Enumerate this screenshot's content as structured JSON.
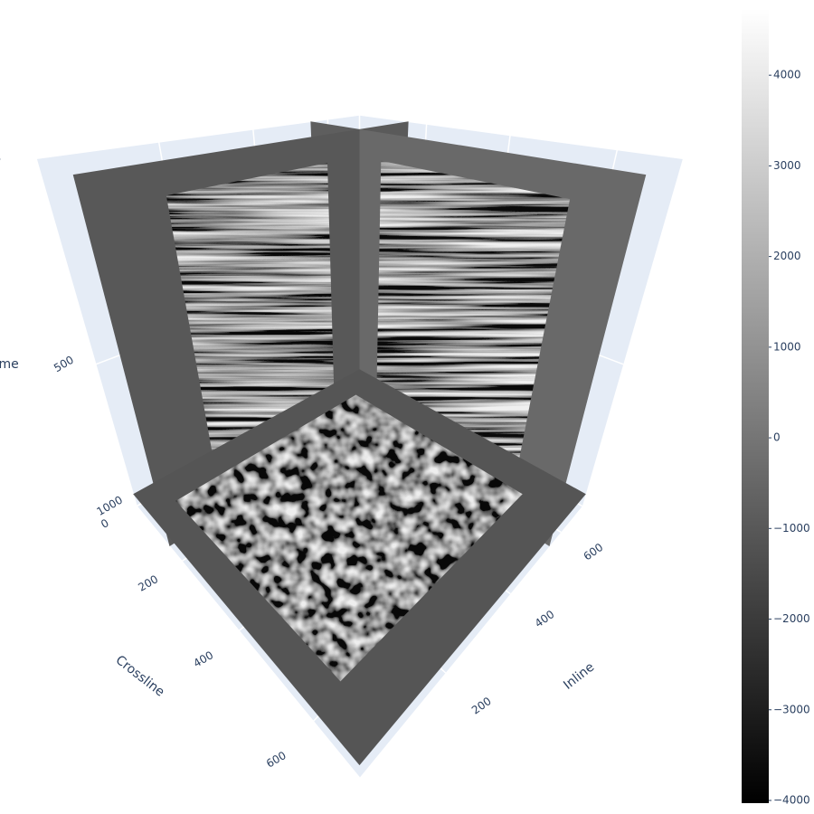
{
  "chart_data": {
    "type": "surface3d",
    "scene": {
      "xaxis": {
        "title": "Inline",
        "range": [
          0,
          700
        ],
        "ticks": [
          0,
          200,
          400,
          600
        ]
      },
      "yaxis": {
        "title": "Crossline",
        "range": [
          0,
          700
        ],
        "ticks": [
          0,
          200,
          400,
          600
        ]
      },
      "zaxis": {
        "title": "Time",
        "range": [
          0,
          1000
        ],
        "ticks": [
          0,
          500,
          1000
        ],
        "reversed": true
      },
      "bgcolor": "#e5ecf6",
      "gridcolor": "#ffffff"
    },
    "slices": {
      "inline": 550,
      "crossline": 150,
      "time": 950
    },
    "colorbar": {
      "range": [
        -4030,
        4730
      ],
      "colors": [
        "#000000",
        "#ffffff"
      ],
      "ticks": [
        {
          "value": -4000,
          "label": "−4000"
        },
        {
          "value": -3000,
          "label": "−3000"
        },
        {
          "value": -2000,
          "label": "−2000"
        },
        {
          "value": -1000,
          "label": "−1000"
        },
        0,
        1000,
        2000,
        3000,
        4000
      ]
    }
  }
}
